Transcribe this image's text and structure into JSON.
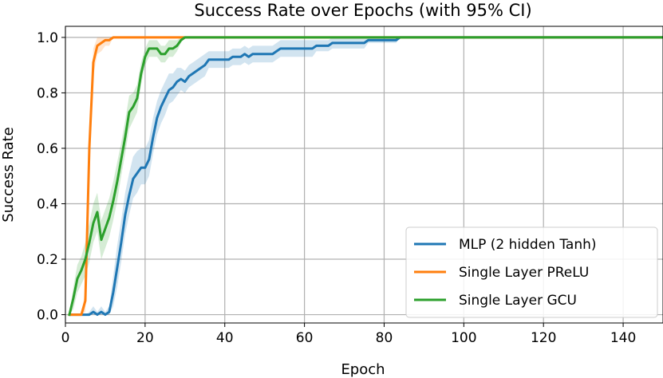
{
  "chart_data": {
    "type": "line",
    "title": "Success Rate over Epochs (with 95% CI)",
    "xlabel": "Epoch",
    "ylabel": "Success Rate",
    "xlim": [
      0,
      150
    ],
    "ylim": [
      -0.03,
      1.04
    ],
    "xticks": [
      0,
      20,
      40,
      60,
      80,
      100,
      120,
      140
    ],
    "yticks": [
      0.0,
      0.2,
      0.4,
      0.6,
      0.8,
      1.0
    ],
    "xtick_labels": [
      "0",
      "20",
      "40",
      "60",
      "80",
      "100",
      "120",
      "140"
    ],
    "ytick_labels": [
      "0.0",
      "0.2",
      "0.4",
      "0.6",
      "0.8",
      "1.0"
    ],
    "grid": true,
    "legend_position": "lower-right",
    "series": [
      {
        "name": "MLP (2 hidden Tanh)",
        "color": "#1f77b4",
        "x": [
          1,
          2,
          3,
          4,
          5,
          6,
          7,
          8,
          9,
          10,
          11,
          12,
          13,
          14,
          15,
          16,
          17,
          18,
          19,
          20,
          21,
          22,
          23,
          24,
          25,
          26,
          27,
          28,
          29,
          30,
          31,
          32,
          33,
          34,
          35,
          36,
          37,
          38,
          39,
          40,
          41,
          42,
          43,
          44,
          45,
          46,
          47,
          48,
          49,
          50,
          51,
          52,
          53,
          54,
          55,
          56,
          57,
          58,
          59,
          60,
          61,
          62,
          63,
          64,
          65,
          66,
          67,
          68,
          69,
          70,
          71,
          72,
          73,
          74,
          75,
          76,
          77,
          78,
          79,
          80,
          81,
          82,
          83,
          84,
          150
        ],
        "y": [
          0,
          0,
          0,
          0,
          0,
          0,
          0.01,
          0,
          0.01,
          0,
          0.01,
          0.08,
          0.17,
          0.26,
          0.36,
          0.43,
          0.49,
          0.51,
          0.53,
          0.53,
          0.56,
          0.64,
          0.71,
          0.75,
          0.78,
          0.81,
          0.82,
          0.84,
          0.85,
          0.84,
          0.86,
          0.87,
          0.88,
          0.89,
          0.9,
          0.92,
          0.92,
          0.92,
          0.92,
          0.92,
          0.92,
          0.93,
          0.93,
          0.93,
          0.94,
          0.93,
          0.94,
          0.94,
          0.94,
          0.94,
          0.94,
          0.94,
          0.95,
          0.96,
          0.96,
          0.96,
          0.96,
          0.96,
          0.96,
          0.96,
          0.96,
          0.96,
          0.97,
          0.97,
          0.97,
          0.97,
          0.98,
          0.98,
          0.98,
          0.98,
          0.98,
          0.98,
          0.98,
          0.98,
          0.98,
          0.99,
          0.99,
          0.99,
          0.99,
          0.99,
          0.99,
          0.99,
          0.99,
          1.0,
          1.0
        ],
        "ci_lower": [
          0,
          0,
          0,
          0,
          0,
          0,
          0,
          0,
          0,
          0,
          0,
          0.03,
          0.1,
          0.19,
          0.29,
          0.36,
          0.42,
          0.44,
          0.47,
          0.47,
          0.5,
          0.58,
          0.65,
          0.69,
          0.72,
          0.76,
          0.77,
          0.79,
          0.81,
          0.8,
          0.82,
          0.83,
          0.84,
          0.85,
          0.86,
          0.89,
          0.89,
          0.89,
          0.89,
          0.89,
          0.89,
          0.9,
          0.9,
          0.9,
          0.91,
          0.9,
          0.91,
          0.91,
          0.91,
          0.91,
          0.91,
          0.91,
          0.92,
          0.93,
          0.93,
          0.93,
          0.93,
          0.93,
          0.93,
          0.93,
          0.93,
          0.93,
          0.95,
          0.95,
          0.95,
          0.95,
          0.96,
          0.96,
          0.96,
          0.96,
          0.96,
          0.96,
          0.96,
          0.96,
          0.96,
          0.98,
          0.98,
          0.98,
          0.98,
          0.98,
          0.98,
          0.98,
          0.98,
          1.0,
          1.0
        ],
        "ci_upper": [
          0,
          0,
          0,
          0,
          0,
          0.01,
          0.03,
          0.01,
          0.03,
          0.01,
          0.03,
          0.14,
          0.25,
          0.34,
          0.44,
          0.51,
          0.57,
          0.59,
          0.6,
          0.6,
          0.63,
          0.71,
          0.77,
          0.81,
          0.84,
          0.87,
          0.87,
          0.89,
          0.89,
          0.88,
          0.9,
          0.91,
          0.92,
          0.93,
          0.94,
          0.95,
          0.95,
          0.95,
          0.95,
          0.95,
          0.95,
          0.96,
          0.96,
          0.96,
          0.97,
          0.96,
          0.97,
          0.97,
          0.97,
          0.97,
          0.97,
          0.97,
          0.98,
          0.99,
          0.99,
          0.99,
          0.99,
          0.99,
          0.99,
          0.99,
          0.99,
          0.99,
          0.99,
          0.99,
          0.99,
          0.99,
          1.0,
          1.0,
          1.0,
          1.0,
          1.0,
          1.0,
          1.0,
          1.0,
          1.0,
          1.0,
          1.0,
          1.0,
          1.0,
          1.0,
          1.0,
          1.0,
          1.0,
          1.0,
          1.0
        ]
      },
      {
        "name": "Single Layer PReLU",
        "color": "#ff7f0e",
        "x": [
          1,
          2,
          3,
          4,
          5,
          6,
          7,
          8,
          9,
          10,
          11,
          12,
          13,
          14,
          15,
          16,
          17,
          18,
          19,
          20,
          21,
          22,
          23,
          24,
          25,
          26,
          27,
          28,
          29,
          30,
          150
        ],
        "y": [
          0,
          0,
          0,
          0,
          0.05,
          0.6,
          0.91,
          0.97,
          0.98,
          0.99,
          0.99,
          1.0,
          1.0,
          1.0,
          1.0,
          1.0,
          1.0,
          1.0,
          1.0,
          1.0,
          1.0,
          1.0,
          1.0,
          1.0,
          1.0,
          1.0,
          1.0,
          1.0,
          1.0,
          1.0,
          1.0
        ],
        "ci_lower": [
          0,
          0,
          0,
          0,
          0.01,
          0.52,
          0.86,
          0.94,
          0.95,
          0.97,
          0.97,
          1.0,
          1.0,
          1.0,
          1.0,
          1.0,
          1.0,
          1.0,
          1.0,
          1.0,
          1.0,
          1.0,
          1.0,
          1.0,
          1.0,
          1.0,
          1.0,
          1.0,
          1.0,
          1.0,
          1.0
        ],
        "ci_upper": [
          0,
          0,
          0,
          0,
          0.09,
          0.68,
          0.96,
          1.0,
          1.0,
          1.0,
          1.0,
          1.0,
          1.0,
          1.0,
          1.0,
          1.0,
          1.0,
          1.0,
          1.0,
          1.0,
          1.0,
          1.0,
          1.0,
          1.0,
          1.0,
          1.0,
          1.0,
          1.0,
          1.0,
          1.0,
          1.0
        ]
      },
      {
        "name": "Single Layer GCU",
        "color": "#2ca02c",
        "x": [
          1,
          2,
          3,
          4,
          5,
          6,
          7,
          8,
          9,
          10,
          11,
          12,
          13,
          14,
          15,
          16,
          17,
          18,
          19,
          20,
          21,
          22,
          23,
          24,
          25,
          26,
          27,
          28,
          29,
          30,
          150
        ],
        "y": [
          0,
          0.06,
          0.13,
          0.16,
          0.2,
          0.26,
          0.33,
          0.37,
          0.27,
          0.31,
          0.35,
          0.41,
          0.48,
          0.56,
          0.64,
          0.73,
          0.75,
          0.78,
          0.87,
          0.93,
          0.96,
          0.96,
          0.96,
          0.94,
          0.94,
          0.96,
          0.96,
          0.97,
          0.99,
          1.0,
          1.0
        ],
        "ci_lower": [
          0,
          0.02,
          0.08,
          0.11,
          0.14,
          0.19,
          0.26,
          0.3,
          0.2,
          0.24,
          0.28,
          0.34,
          0.41,
          0.5,
          0.58,
          0.67,
          0.7,
          0.73,
          0.83,
          0.9,
          0.93,
          0.93,
          0.93,
          0.91,
          0.91,
          0.93,
          0.93,
          0.95,
          0.98,
          1.0,
          1.0
        ],
        "ci_upper": [
          0,
          0.1,
          0.18,
          0.21,
          0.26,
          0.33,
          0.4,
          0.44,
          0.34,
          0.38,
          0.42,
          0.48,
          0.55,
          0.62,
          0.7,
          0.79,
          0.8,
          0.83,
          0.91,
          0.96,
          0.99,
          0.99,
          0.99,
          0.97,
          0.97,
          0.99,
          0.99,
          0.99,
          1.0,
          1.0,
          1.0
        ]
      }
    ]
  }
}
